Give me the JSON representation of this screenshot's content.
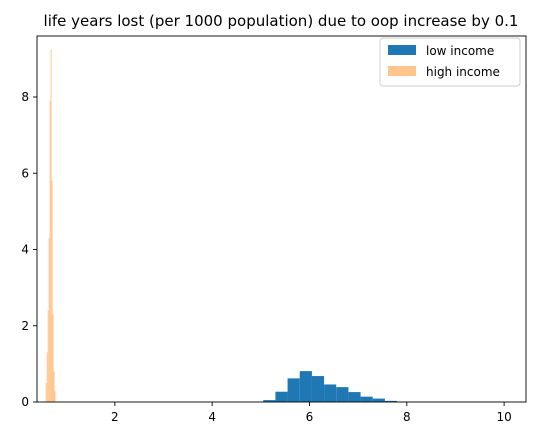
{
  "chart_data": {
    "type": "bar",
    "title": "life years lost (per 1000 population) due to oop increase by 0.1",
    "xlabel": "",
    "ylabel": "",
    "xlim": [
      0.4,
      10.45
    ],
    "ylim": [
      0,
      9.6
    ],
    "xticks": [
      2,
      4,
      6,
      8,
      10
    ],
    "yticks": [
      0,
      2,
      4,
      6,
      8
    ],
    "grid": false,
    "legend_position": "top-right",
    "series": [
      {
        "name": "low income",
        "color": "#1f77b4",
        "bins": [
          {
            "x0": 5.05,
            "x1": 5.3,
            "y": 0.05
          },
          {
            "x0": 5.3,
            "x1": 5.55,
            "y": 0.27
          },
          {
            "x0": 5.55,
            "x1": 5.8,
            "y": 0.62
          },
          {
            "x0": 5.8,
            "x1": 6.05,
            "y": 0.81
          },
          {
            "x0": 6.05,
            "x1": 6.3,
            "y": 0.68
          },
          {
            "x0": 6.3,
            "x1": 6.55,
            "y": 0.46
          },
          {
            "x0": 6.55,
            "x1": 6.8,
            "y": 0.39
          },
          {
            "x0": 6.8,
            "x1": 7.05,
            "y": 0.26
          },
          {
            "x0": 7.05,
            "x1": 7.3,
            "y": 0.14
          },
          {
            "x0": 7.3,
            "x1": 7.55,
            "y": 0.09
          },
          {
            "x0": 7.55,
            "x1": 7.8,
            "y": 0.03
          },
          {
            "x0": 7.8,
            "x1": 8.05,
            "y": 0.01
          },
          {
            "x0": 8.05,
            "x1": 10.0,
            "y": 0.003
          }
        ]
      },
      {
        "name": "high income",
        "color": "#ffbb78",
        "opacity": 0.85,
        "bins": [
          {
            "x0": 0.58,
            "x1": 0.6,
            "y": 0.5
          },
          {
            "x0": 0.6,
            "x1": 0.62,
            "y": 1.3
          },
          {
            "x0": 0.62,
            "x1": 0.64,
            "y": 2.4
          },
          {
            "x0": 0.64,
            "x1": 0.66,
            "y": 4.3
          },
          {
            "x0": 0.66,
            "x1": 0.68,
            "y": 7.9
          },
          {
            "x0": 0.68,
            "x1": 0.7,
            "y": 9.25
          },
          {
            "x0": 0.7,
            "x1": 0.72,
            "y": 5.8
          },
          {
            "x0": 0.72,
            "x1": 0.74,
            "y": 2.3
          },
          {
            "x0": 0.74,
            "x1": 0.76,
            "y": 0.8
          },
          {
            "x0": 0.76,
            "x1": 0.78,
            "y": 0.3
          }
        ]
      }
    ]
  }
}
